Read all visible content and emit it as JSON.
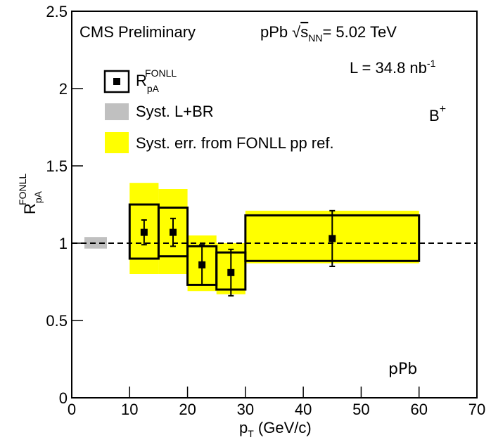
{
  "chart_data": {
    "type": "binned-ratio",
    "experiment": "CMS Preliminary",
    "energy": {
      "system": "pPb",
      "root": "√",
      "var": "s",
      "sub": "NN",
      "rest": "= 5.02 TeV"
    },
    "lumi": {
      "text": "L = 34.8 nb",
      "sup": "-1"
    },
    "particle": {
      "base": "B",
      "sup": "+"
    },
    "system_label": "pPb",
    "x_label": {
      "base": "p",
      "sub": "T",
      "rest": " (GeV/c)"
    },
    "y_label": {
      "base": "R",
      "sub": "pA",
      "sup": "FONLL"
    },
    "legend": {
      "data": {
        "base": "R",
        "sub": "pA",
        "sup": "FONLL"
      },
      "global_syst": "Syst. L+BR",
      "fonll_syst": "Syst. err. from FONLL pp ref."
    },
    "bin_edges": [
      10,
      15,
      20,
      25,
      30,
      60
    ],
    "x": [
      12.5,
      17.5,
      22.5,
      27.5,
      45
    ],
    "values": [
      1.07,
      1.07,
      0.86,
      0.81,
      1.03
    ],
    "stat_errors": [
      0.08,
      0.09,
      0.13,
      0.15,
      0.18
    ],
    "syst_low": [
      0.9,
      0.915,
      0.73,
      0.7,
      0.885
    ],
    "syst_high": [
      1.25,
      1.23,
      0.98,
      0.94,
      1.18
    ],
    "fonll_low": [
      0.8,
      0.8,
      0.69,
      0.67,
      0.87
    ],
    "fonll_high": [
      1.39,
      1.35,
      1.05,
      1.0,
      1.21
    ],
    "global_syst": {
      "low": 0.965,
      "high": 1.04
    },
    "reference_line": 1,
    "colors": {
      "data": "#000000",
      "global_syst": "#c0c0c0",
      "fonll_syst": "#ffff00"
    },
    "xlim": [
      0,
      70
    ],
    "xticks": [
      0,
      10,
      20,
      30,
      40,
      50,
      60,
      70
    ],
    "ylim": [
      0,
      2.5
    ],
    "yticks": [
      0,
      0.5,
      1,
      1.5,
      2,
      2.5
    ]
  }
}
